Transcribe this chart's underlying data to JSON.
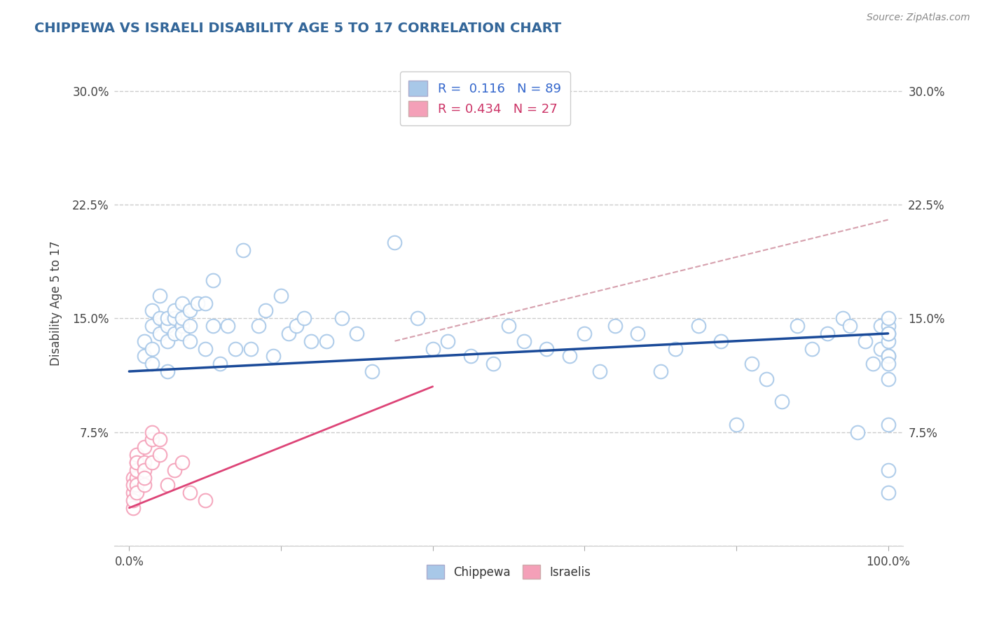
{
  "title": "CHIPPEWA VS ISRAELI DISABILITY AGE 5 TO 17 CORRELATION CHART",
  "ylabel": "Disability Age 5 to 17",
  "source": "Source: ZipAtlas.com",
  "xlim": [
    -2,
    102
  ],
  "ylim": [
    0,
    32
  ],
  "yticks": [
    0,
    7.5,
    15.0,
    22.5,
    30.0
  ],
  "xticks": [
    0,
    20,
    40,
    60,
    80,
    100
  ],
  "ytick_labels_left": [
    "",
    "7.5%",
    "15.0%",
    "22.5%",
    "30.0%"
  ],
  "ytick_labels_right": [
    "",
    "7.5%",
    "15.0%",
    "22.5%",
    "30.0%"
  ],
  "xtick_labels": [
    "0.0%",
    "",
    "",
    "",
    "",
    "100.0%"
  ],
  "chippewa_R": 0.116,
  "chippewa_N": 89,
  "israeli_R": 0.434,
  "israeli_N": 27,
  "chippewa_color": "#a8c8e8",
  "israeli_color": "#f4a0b8",
  "chippewa_edge": "#88aacc",
  "israeli_edge": "#e080a0",
  "chippewa_line_color": "#1a4a99",
  "israeli_line_color": "#dd4477",
  "dashed_line_color": "#cc8899",
  "background_color": "#ffffff",
  "title_color": "#336699",
  "legend_text_color_blue": "#3366cc",
  "legend_text_color_pink": "#cc3366",
  "chippewa_x": [
    2,
    2,
    3,
    3,
    3,
    3,
    4,
    4,
    4,
    5,
    5,
    5,
    5,
    6,
    6,
    6,
    7,
    7,
    7,
    7,
    8,
    8,
    8,
    9,
    10,
    10,
    11,
    11,
    12,
    13,
    14,
    15,
    16,
    17,
    18,
    19,
    20,
    21,
    22,
    23,
    24,
    26,
    28,
    30,
    32,
    35,
    38,
    40,
    42,
    45,
    48,
    50,
    52,
    55,
    58,
    60,
    62,
    64,
    67,
    70,
    72,
    75,
    78,
    80,
    82,
    84,
    86,
    88,
    90,
    92,
    94,
    95,
    96,
    97,
    98,
    99,
    99,
    100,
    100,
    100,
    100,
    100,
    100,
    100,
    100,
    100,
    100,
    100,
    100
  ],
  "chippewa_y": [
    12.5,
    13.5,
    13.0,
    12.0,
    14.5,
    15.5,
    14.0,
    15.0,
    16.5,
    14.5,
    13.5,
    15.0,
    11.5,
    15.0,
    14.0,
    15.5,
    14.5,
    15.0,
    14.0,
    16.0,
    14.5,
    15.5,
    13.5,
    16.0,
    13.0,
    16.0,
    14.5,
    17.5,
    12.0,
    14.5,
    13.0,
    19.5,
    13.0,
    14.5,
    15.5,
    12.5,
    16.5,
    14.0,
    14.5,
    15.0,
    13.5,
    13.5,
    15.0,
    14.0,
    11.5,
    20.0,
    15.0,
    13.0,
    13.5,
    12.5,
    12.0,
    14.5,
    13.5,
    13.0,
    12.5,
    14.0,
    11.5,
    14.5,
    14.0,
    11.5,
    13.0,
    14.5,
    13.5,
    8.0,
    12.0,
    11.0,
    9.5,
    14.5,
    13.0,
    14.0,
    15.0,
    14.5,
    7.5,
    13.5,
    12.0,
    14.5,
    13.0,
    14.5,
    12.5,
    13.5,
    8.0,
    5.0,
    11.0,
    3.5,
    15.0,
    14.0,
    14.0,
    12.5,
    12.0
  ],
  "israeli_x": [
    0.5,
    0.5,
    0.5,
    0.5,
    0.5,
    1,
    1,
    1,
    1,
    1,
    1,
    1,
    2,
    2,
    2,
    2,
    2,
    3,
    3,
    3,
    4,
    4,
    5,
    6,
    7,
    8,
    10
  ],
  "israeli_y": [
    3.5,
    4.5,
    4.0,
    2.5,
    3.0,
    4.5,
    5.5,
    4.0,
    5.0,
    3.5,
    6.0,
    5.5,
    5.5,
    4.0,
    6.5,
    5.0,
    4.5,
    7.0,
    5.5,
    7.5,
    6.0,
    7.0,
    4.0,
    5.0,
    5.5,
    3.5,
    3.0
  ],
  "chippewa_trend_x": [
    0,
    100
  ],
  "chippewa_trend_y": [
    11.5,
    14.0
  ],
  "israeli_trend_x": [
    0,
    40
  ],
  "israeli_trend_y": [
    2.5,
    10.5
  ],
  "dashed_trend_x": [
    35,
    100
  ],
  "dashed_trend_y": [
    13.5,
    21.5
  ]
}
